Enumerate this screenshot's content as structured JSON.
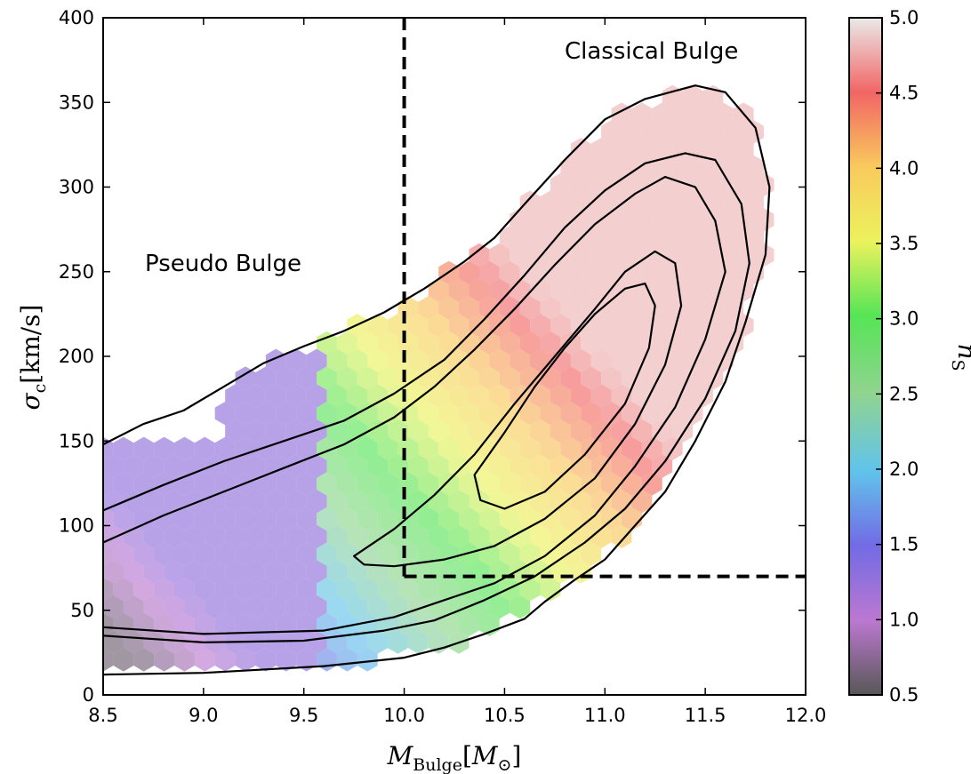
{
  "chart_data": {
    "type": "heatmap",
    "subtype": "hexbin-with-contours",
    "xlabel_main": "M",
    "xlabel_sub": "Bulge",
    "xlabel_unit_open": "[",
    "xlabel_unit_main": "M",
    "xlabel_unit_sub": "⊙",
    "xlabel_unit_close": "]",
    "ylabel_main": "σ",
    "ylabel_sub": "c",
    "ylabel_unit": "[km/s]",
    "colorbar_label_main": "n",
    "colorbar_label_sub": "S",
    "xlim": [
      8.5,
      12.0
    ],
    "ylim": [
      0,
      400
    ],
    "xticks": [
      "8.5",
      "9.0",
      "9.5",
      "10.0",
      "10.5",
      "11.0",
      "11.5",
      "12.0"
    ],
    "yticks": [
      "0",
      "50",
      "100",
      "150",
      "200",
      "250",
      "300",
      "350",
      "400"
    ],
    "colorbar": {
      "range": [
        0.5,
        5.0
      ],
      "ticks": [
        "0.5",
        "1.0",
        "1.5",
        "2.0",
        "2.5",
        "3.0",
        "3.5",
        "4.0",
        "4.5",
        "5.0"
      ],
      "colors": [
        "#404040",
        "#b050c0",
        "#5050e0",
        "#40c0e0",
        "#80c080",
        "#40e040",
        "#e0f040",
        "#f0c040",
        "#f04040",
        "#e0e0e0"
      ]
    },
    "annotations": {
      "pseudo": "Pseudo Bulge",
      "classical": "Classical Bulge"
    },
    "divider": {
      "mass_threshold": 10.0,
      "sigma_threshold": 70
    },
    "contours": [
      [
        [
          8.5,
          148
        ],
        [
          8.7,
          160
        ],
        [
          8.9,
          168
        ],
        [
          9.1,
          182
        ],
        [
          9.3,
          196
        ],
        [
          9.5,
          206
        ],
        [
          9.7,
          215
        ],
        [
          9.9,
          226
        ],
        [
          10.1,
          240
        ],
        [
          10.3,
          256
        ],
        [
          10.45,
          270
        ],
        [
          10.6,
          290
        ],
        [
          10.8,
          316
        ],
        [
          11.0,
          340
        ],
        [
          11.2,
          352
        ],
        [
          11.45,
          360
        ],
        [
          11.6,
          356
        ],
        [
          11.75,
          335
        ],
        [
          11.82,
          300
        ],
        [
          11.8,
          260
        ],
        [
          11.7,
          220
        ],
        [
          11.6,
          185
        ],
        [
          11.45,
          150
        ],
        [
          11.3,
          120
        ],
        [
          11.15,
          100
        ],
        [
          11.0,
          80
        ],
        [
          10.85,
          68
        ],
        [
          10.7,
          55
        ],
        [
          10.6,
          45
        ],
        [
          10.4,
          36
        ],
        [
          10.2,
          28
        ],
        [
          10.0,
          22
        ],
        [
          9.6,
          17
        ],
        [
          9.0,
          13
        ],
        [
          8.5,
          12
        ]
      ],
      [
        [
          8.5,
          109
        ],
        [
          8.8,
          124
        ],
        [
          9.1,
          138
        ],
        [
          9.4,
          150
        ],
        [
          9.7,
          162
        ],
        [
          9.95,
          178
        ],
        [
          10.2,
          198
        ],
        [
          10.4,
          222
        ],
        [
          10.6,
          248
        ],
        [
          10.8,
          276
        ],
        [
          11.0,
          298
        ],
        [
          11.2,
          314
        ],
        [
          11.4,
          320
        ],
        [
          11.55,
          316
        ],
        [
          11.68,
          290
        ],
        [
          11.72,
          255
        ],
        [
          11.65,
          215
        ],
        [
          11.5,
          175
        ],
        [
          11.3,
          138
        ],
        [
          11.1,
          110
        ],
        [
          10.9,
          90
        ],
        [
          10.65,
          70
        ],
        [
          10.4,
          56
        ],
        [
          10.15,
          44
        ],
        [
          9.9,
          38
        ],
        [
          9.5,
          32
        ],
        [
          9.0,
          31
        ],
        [
          8.5,
          35
        ]
      ],
      [
        [
          8.5,
          90
        ],
        [
          8.8,
          106
        ],
        [
          9.1,
          120
        ],
        [
          9.4,
          134
        ],
        [
          9.7,
          148
        ],
        [
          9.95,
          164
        ],
        [
          10.15,
          182
        ],
        [
          10.35,
          204
        ],
        [
          10.55,
          228
        ],
        [
          10.75,
          254
        ],
        [
          10.95,
          278
        ],
        [
          11.15,
          296
        ],
        [
          11.3,
          306
        ],
        [
          11.45,
          300
        ],
        [
          11.55,
          280
        ],
        [
          11.6,
          250
        ],
        [
          11.5,
          210
        ],
        [
          11.35,
          170
        ],
        [
          11.15,
          135
        ],
        [
          10.95,
          106
        ],
        [
          10.7,
          82
        ],
        [
          10.45,
          66
        ],
        [
          10.2,
          56
        ],
        [
          9.95,
          46
        ],
        [
          9.6,
          38
        ],
        [
          9.0,
          36
        ],
        [
          8.5,
          40
        ]
      ],
      [
        [
          9.75,
          82
        ],
        [
          9.95,
          98
        ],
        [
          10.15,
          118
        ],
        [
          10.35,
          142
        ],
        [
          10.55,
          172
        ],
        [
          10.75,
          200
        ],
        [
          10.95,
          228
        ],
        [
          11.1,
          250
        ],
        [
          11.25,
          262
        ],
        [
          11.35,
          255
        ],
        [
          11.38,
          230
        ],
        [
          11.3,
          195
        ],
        [
          11.15,
          160
        ],
        [
          10.95,
          128
        ],
        [
          10.7,
          104
        ],
        [
          10.45,
          88
        ],
        [
          10.2,
          80
        ],
        [
          9.95,
          76
        ],
        [
          9.8,
          77
        ]
      ],
      [
        [
          10.35,
          130
        ],
        [
          10.5,
          155
        ],
        [
          10.65,
          182
        ],
        [
          10.8,
          205
        ],
        [
          10.95,
          225
        ],
        [
          11.1,
          240
        ],
        [
          11.2,
          243
        ],
        [
          11.25,
          230
        ],
        [
          11.22,
          205
        ],
        [
          11.1,
          172
        ],
        [
          10.9,
          142
        ],
        [
          10.7,
          120
        ],
        [
          10.5,
          110
        ],
        [
          10.38,
          115
        ]
      ]
    ]
  }
}
